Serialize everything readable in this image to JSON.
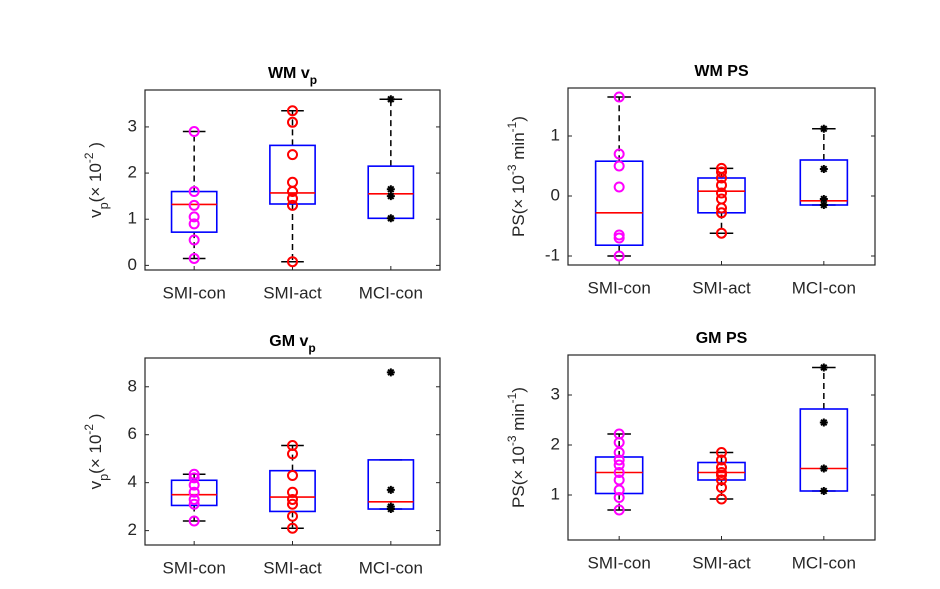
{
  "chart_data": [
    {
      "type": "box",
      "title": [
        {
          "text": "WM v",
          "shift": "base"
        },
        {
          "text": "p",
          "shift": "sub"
        }
      ],
      "ylabel": [
        {
          "text": "v",
          "shift": "base"
        },
        {
          "text": "p",
          "shift": "sub"
        },
        {
          "text": "(× 10",
          "shift": "base"
        },
        {
          "text": "-2",
          "shift": "super"
        },
        {
          "text": " )",
          "shift": "base"
        }
      ],
      "categories": [
        "SMI-con",
        "SMI-act",
        "MCI-con"
      ],
      "ylim": [
        -0.1,
        3.8
      ],
      "yticks": [
        0,
        1,
        2,
        3
      ],
      "box_color": "#0000ff",
      "median_color": "#ff0000",
      "whisker_color": "#000000",
      "boxes": [
        {
          "whisker_low": 0.15,
          "q1": 0.72,
          "median": 1.32,
          "q3": 1.6,
          "whisker_high": 2.9,
          "marker": "circle",
          "color": "#ff00ff",
          "points": [
            2.9,
            1.6,
            1.3,
            1.05,
            0.9,
            0.55,
            0.15
          ]
        },
        {
          "whisker_low": 0.08,
          "q1": 1.33,
          "median": 1.57,
          "q3": 2.6,
          "whisker_high": 3.35,
          "marker": "circle",
          "color": "#ff0000",
          "points": [
            3.35,
            3.1,
            2.4,
            1.8,
            1.6,
            1.45,
            1.3,
            0.08
          ]
        },
        {
          "whisker_low": 1.02,
          "q1": 1.02,
          "median": 1.55,
          "q3": 2.15,
          "whisker_high": 3.6,
          "marker": "star",
          "color": "#000000",
          "points": [
            3.6,
            1.65,
            1.5,
            1.02
          ]
        }
      ]
    },
    {
      "type": "box",
      "title": [
        {
          "text": "WM PS",
          "shift": "base"
        }
      ],
      "ylabel": [
        {
          "text": "PS(× 10",
          "shift": "base"
        },
        {
          "text": "-3",
          "shift": "super"
        },
        {
          "text": " min",
          "shift": "base"
        },
        {
          "text": "-1",
          "shift": "super"
        },
        {
          "text": ")",
          "shift": "base"
        }
      ],
      "categories": [
        "SMI-con",
        "SMI-act",
        "MCI-con"
      ],
      "ylim": [
        -1.15,
        1.8
      ],
      "yticks": [
        -1,
        0,
        1
      ],
      "box_color": "#0000ff",
      "median_color": "#ff0000",
      "whisker_color": "#000000",
      "boxes": [
        {
          "whisker_low": -1.0,
          "q1": -0.82,
          "median": -0.28,
          "q3": 0.58,
          "whisker_high": 1.65,
          "marker": "circle",
          "color": "#ff00ff",
          "points": [
            1.65,
            0.7,
            0.5,
            0.15,
            -0.65,
            -0.7,
            -1.0
          ]
        },
        {
          "whisker_low": -0.62,
          "q1": -0.28,
          "median": 0.08,
          "q3": 0.3,
          "whisker_high": 0.46,
          "marker": "circle",
          "color": "#ff0000",
          "points": [
            0.46,
            0.4,
            0.3,
            0.18,
            0.05,
            -0.05,
            -0.2,
            -0.28,
            -0.62
          ]
        },
        {
          "whisker_low": -0.15,
          "q1": -0.15,
          "median": -0.08,
          "q3": 0.6,
          "whisker_high": 1.12,
          "marker": "star",
          "color": "#000000",
          "points": [
            1.12,
            0.45,
            -0.05,
            -0.15
          ]
        }
      ]
    },
    {
      "type": "box",
      "title": [
        {
          "text": "GM v",
          "shift": "base"
        },
        {
          "text": "p",
          "shift": "sub"
        }
      ],
      "ylabel": [
        {
          "text": "v",
          "shift": "base"
        },
        {
          "text": "p",
          "shift": "sub"
        },
        {
          "text": "(× 10",
          "shift": "base"
        },
        {
          "text": "-2",
          "shift": "super"
        },
        {
          "text": " )",
          "shift": "base"
        }
      ],
      "categories": [
        "SMI-con",
        "SMI-act",
        "MCI-con"
      ],
      "ylim": [
        1.4,
        9.2
      ],
      "yticks": [
        2,
        4,
        6,
        8
      ],
      "box_color": "#0000ff",
      "median_color": "#ff0000",
      "whisker_color": "#000000",
      "boxes": [
        {
          "whisker_low": 2.4,
          "q1": 3.05,
          "median": 3.5,
          "q3": 4.1,
          "whisker_high": 4.35,
          "marker": "circle",
          "color": "#ff00ff",
          "points": [
            4.35,
            4.2,
            3.9,
            3.6,
            3.3,
            3.1,
            2.4
          ]
        },
        {
          "whisker_low": 2.1,
          "q1": 2.8,
          "median": 3.4,
          "q3": 4.5,
          "whisker_high": 5.55,
          "marker": "circle",
          "color": "#ff0000",
          "points": [
            5.55,
            5.2,
            4.3,
            3.6,
            3.3,
            3.1,
            2.6,
            2.1
          ]
        },
        {
          "whisker_low": 2.9,
          "q1": 2.9,
          "median": 3.2,
          "q3": 4.95,
          "whisker_high": 4.95,
          "marker": "star",
          "color": "#000000",
          "points": [
            8.6,
            3.7,
            3.0,
            2.9
          ]
        }
      ]
    },
    {
      "type": "box",
      "title": [
        {
          "text": "GM PS",
          "shift": "base"
        }
      ],
      "ylabel": [
        {
          "text": "PS(× 10",
          "shift": "base"
        },
        {
          "text": "-3",
          "shift": "super"
        },
        {
          "text": " min",
          "shift": "base"
        },
        {
          "text": "-1",
          "shift": "super"
        },
        {
          "text": ")",
          "shift": "base"
        }
      ],
      "categories": [
        "SMI-con",
        "SMI-act",
        "MCI-con"
      ],
      "ylim": [
        0.1,
        3.8
      ],
      "yticks": [
        1,
        2,
        3
      ],
      "box_color": "#0000ff",
      "median_color": "#ff0000",
      "whisker_color": "#000000",
      "boxes": [
        {
          "whisker_low": 0.7,
          "q1": 1.03,
          "median": 1.45,
          "q3": 1.76,
          "whisker_high": 2.22,
          "marker": "circle",
          "color": "#ff00ff",
          "points": [
            2.22,
            2.05,
            1.85,
            1.7,
            1.6,
            1.45,
            1.3,
            1.1,
            0.95,
            0.7
          ]
        },
        {
          "whisker_low": 0.92,
          "q1": 1.3,
          "median": 1.45,
          "q3": 1.65,
          "whisker_high": 1.85,
          "marker": "circle",
          "color": "#ff0000",
          "points": [
            1.85,
            1.7,
            1.55,
            1.45,
            1.4,
            1.3,
            1.15,
            0.92
          ]
        },
        {
          "whisker_low": 1.08,
          "q1": 1.08,
          "median": 1.53,
          "q3": 2.72,
          "whisker_high": 3.55,
          "marker": "star",
          "color": "#000000",
          "points": [
            3.55,
            2.45,
            1.53,
            1.08
          ]
        }
      ]
    }
  ]
}
